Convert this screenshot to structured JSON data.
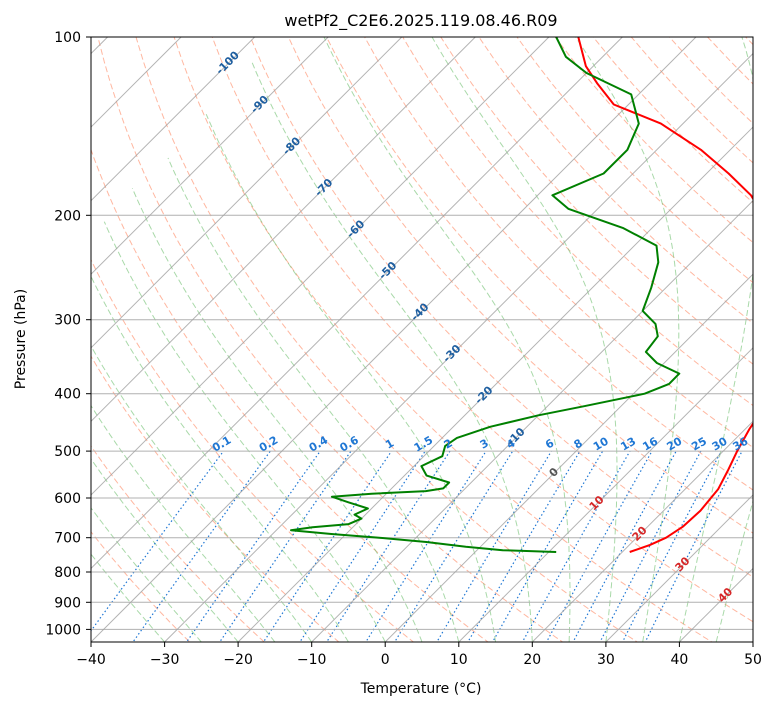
{
  "chart_data": {
    "type": "line",
    "subtype": "skew-T log-p diagram",
    "title": "wetPf2_C2E6.2025.119.08.46.R09",
    "xlabel": "Temperature (°C)",
    "ylabel": "Pressure (hPa)",
    "xlim": [
      -40,
      50
    ],
    "ylim": [
      1050,
      100
    ],
    "y_scale": "log",
    "x_ticks": [
      -40,
      -30,
      -20,
      -10,
      0,
      10,
      20,
      30,
      40,
      50
    ],
    "y_ticks": [
      100,
      200,
      300,
      400,
      500,
      600,
      700,
      800,
      900,
      1000
    ],
    "grid": true,
    "series": [
      {
        "role": "temperature",
        "color": "#ff0000",
        "points": [
          {
            "p": 740,
            "t": 21.0
          },
          {
            "p": 720,
            "t": 22.8
          },
          {
            "p": 700,
            "t": 24.0
          },
          {
            "p": 670,
            "t": 24.8
          },
          {
            "p": 630,
            "t": 25.0
          },
          {
            "p": 580,
            "t": 24.5
          },
          {
            "p": 540,
            "t": 23.3
          },
          {
            "p": 500,
            "t": 21.9
          },
          {
            "p": 460,
            "t": 20.6
          },
          {
            "p": 430,
            "t": 19.8
          },
          {
            "p": 400,
            "t": 18.4
          },
          {
            "p": 370,
            "t": 17.4
          },
          {
            "p": 340,
            "t": 16.3
          },
          {
            "p": 300,
            "t": 12.5
          },
          {
            "p": 260,
            "t": 5.5
          },
          {
            "p": 240,
            "t": 0.8
          },
          {
            "p": 225,
            "t": -2.8
          },
          {
            "p": 212,
            "t": -4.5
          },
          {
            "p": 200,
            "t": -6.6
          },
          {
            "p": 185,
            "t": -11.0
          },
          {
            "p": 170,
            "t": -17.0
          },
          {
            "p": 155,
            "t": -24.0
          },
          {
            "p": 140,
            "t": -33.0
          },
          {
            "p": 130,
            "t": -42.0
          },
          {
            "p": 120,
            "t": -47.0
          },
          {
            "p": 112,
            "t": -51.0
          },
          {
            "p": 100,
            "t": -56.0
          }
        ]
      },
      {
        "role": "dewpoint",
        "color": "#008000",
        "points": [
          {
            "p": 740,
            "t": 11.0
          },
          {
            "p": 735,
            "t": 3.5
          },
          {
            "p": 725,
            "t": -2.0
          },
          {
            "p": 712,
            "t": -8.0
          },
          {
            "p": 700,
            "t": -15.0
          },
          {
            "p": 690,
            "t": -22.0
          },
          {
            "p": 680,
            "t": -28.0
          },
          {
            "p": 672,
            "t": -25.5
          },
          {
            "p": 664,
            "t": -21.0
          },
          {
            "p": 650,
            "t": -20.0
          },
          {
            "p": 640,
            "t": -21.5
          },
          {
            "p": 625,
            "t": -20.5
          },
          {
            "p": 610,
            "t": -24.0
          },
          {
            "p": 597,
            "t": -27.0
          },
          {
            "p": 590,
            "t": -22.0
          },
          {
            "p": 584,
            "t": -15.0
          },
          {
            "p": 578,
            "t": -13.0
          },
          {
            "p": 565,
            "t": -13.0
          },
          {
            "p": 550,
            "t": -17.0
          },
          {
            "p": 530,
            "t": -19.0
          },
          {
            "p": 510,
            "t": -17.5
          },
          {
            "p": 490,
            "t": -18.5
          },
          {
            "p": 475,
            "t": -18.0
          },
          {
            "p": 455,
            "t": -15.0
          },
          {
            "p": 435,
            "t": -10.0
          },
          {
            "p": 420,
            "t": -5.0
          },
          {
            "p": 400,
            "t": 1.5
          },
          {
            "p": 385,
            "t": 3.5
          },
          {
            "p": 370,
            "t": 3.5
          },
          {
            "p": 355,
            "t": -1.0
          },
          {
            "p": 340,
            "t": -4.0
          },
          {
            "p": 320,
            "t": -4.5
          },
          {
            "p": 305,
            "t": -6.5
          },
          {
            "p": 290,
            "t": -10.0
          },
          {
            "p": 265,
            "t": -12.0
          },
          {
            "p": 240,
            "t": -14.5
          },
          {
            "p": 225,
            "t": -17.0
          },
          {
            "p": 210,
            "t": -24.0
          },
          {
            "p": 195,
            "t": -34.0
          },
          {
            "p": 185,
            "t": -38.0
          },
          {
            "p": 170,
            "t": -34.0
          },
          {
            "p": 155,
            "t": -34.0
          },
          {
            "p": 140,
            "t": -36.0
          },
          {
            "p": 125,
            "t": -41.0
          },
          {
            "p": 115,
            "t": -50.0
          },
          {
            "p": 108,
            "t": -55.0
          },
          {
            "p": 100,
            "t": -59.0
          }
        ]
      }
    ],
    "isotherm_labels": [
      -100,
      -90,
      -80,
      -70,
      -60,
      -50,
      -40,
      -30,
      -20,
      -10,
      0,
      10,
      20,
      30,
      40
    ],
    "mixing_ratio_labels": [
      "0.1",
      "0.2",
      "0.4",
      "0.6",
      "1",
      "1.5",
      "2",
      "3",
      "4",
      "6",
      "8",
      "10",
      "13",
      "16",
      "20",
      "25",
      "30",
      "36"
    ],
    "mixing_ratio_values": [
      0.1,
      0.2,
      0.4,
      0.6,
      1,
      1.5,
      2,
      3,
      4,
      6,
      8,
      10,
      13,
      16,
      20,
      25,
      30,
      36
    ],
    "colors": {
      "grid": "#b0b0b0",
      "isotherm": "#a0a0a0",
      "dry_adiabat": "#ff9f80",
      "moist_adiabat": "#70c070",
      "mixing_ratio": "#1f77d4",
      "isotherm_label": "#1f5fa0",
      "warm_isotherm_label": "#d62728"
    }
  }
}
